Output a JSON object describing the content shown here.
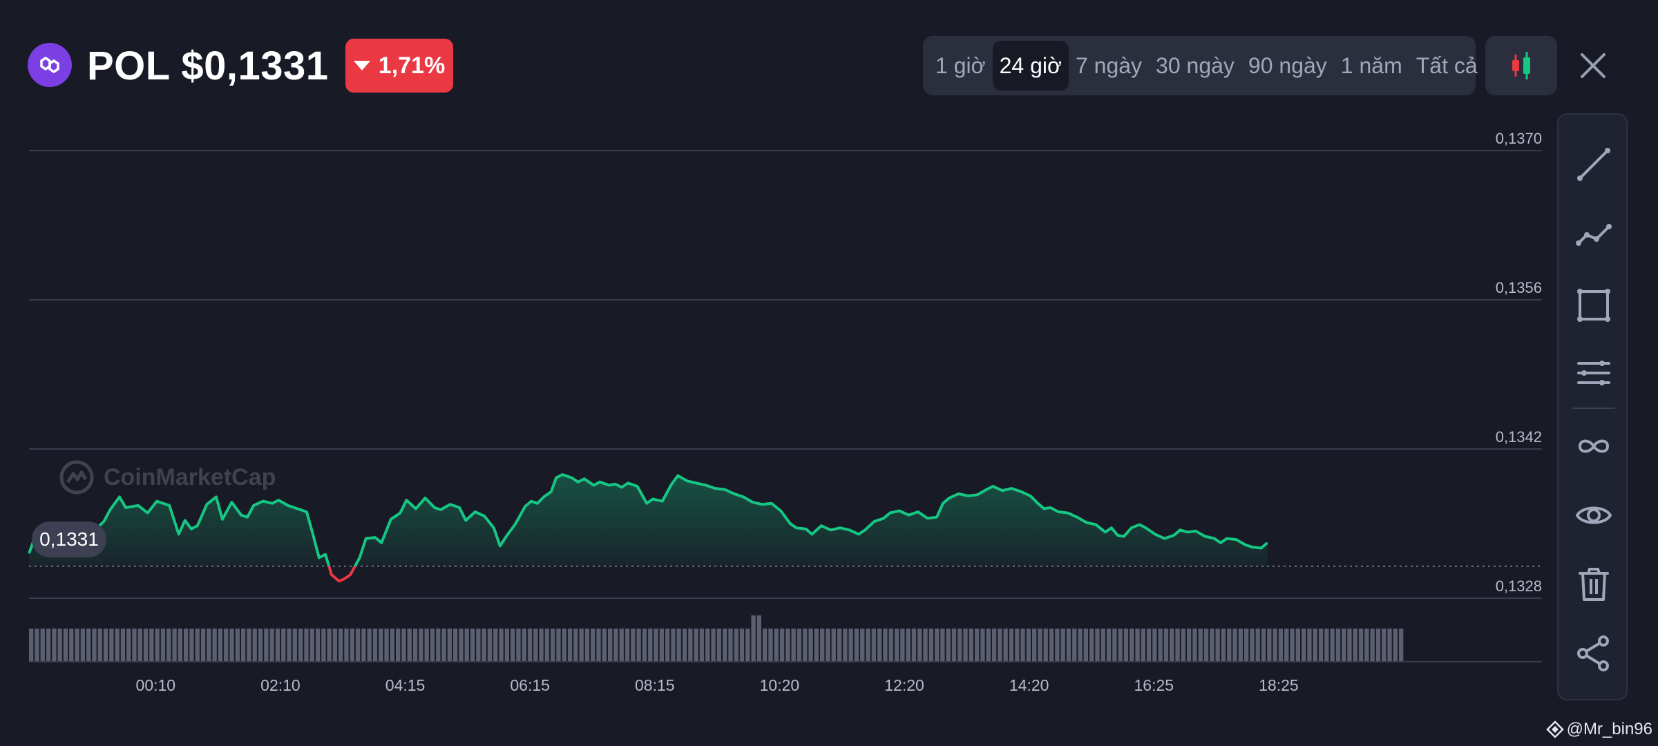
{
  "header": {
    "symbol": "POL",
    "price": "$0,1331",
    "change": "1,71%",
    "change_color": "#ea3943",
    "logo_icon": "polygon-logo-icon"
  },
  "range_tabs": [
    {
      "label": "1 giờ",
      "active": false
    },
    {
      "label": "24 giờ",
      "active": true
    },
    {
      "label": "7 ngày",
      "active": false
    },
    {
      "label": "30 ngày",
      "active": false
    },
    {
      "label": "90 ngày",
      "active": false
    },
    {
      "label": "1 năm",
      "active": false
    },
    {
      "label": "Tất cả",
      "active": false
    }
  ],
  "toolbar": {
    "icons": [
      "trend-line-icon",
      "polyline-icon",
      "rectangle-icon",
      "horizontal-lines-icon",
      "infinity-icon",
      "eye-icon",
      "trash-icon",
      "share-icon"
    ]
  },
  "watermark": "CoinMarketCap",
  "current_price_label": "0,1331",
  "signature": "@Mr_bin96",
  "colors": {
    "up": "#16c784",
    "down": "#ea3943",
    "grid": "#3a3d4e"
  },
  "chart_data": {
    "type": "area",
    "title": "",
    "xlabel": "",
    "ylabel": "",
    "y_axis_side": "right",
    "ylim": [
      0.1328,
      0.137
    ],
    "y_ticks": [
      {
        "value": 0.137,
        "label": "0,1370"
      },
      {
        "value": 0.1356,
        "label": "0,1356"
      },
      {
        "value": 0.1342,
        "label": "0,1342"
      },
      {
        "value": 0.1328,
        "label": "0,1328"
      }
    ],
    "xlim": [
      -0.45,
      23.8
    ],
    "x_ticks": [
      {
        "value": 1.58,
        "label": "00:10"
      },
      {
        "value": 3.58,
        "label": "02:10"
      },
      {
        "value": 5.58,
        "label": "04:15"
      },
      {
        "value": 7.58,
        "label": "06:15"
      },
      {
        "value": 9.58,
        "label": "08:15"
      },
      {
        "value": 11.58,
        "label": "10:20"
      },
      {
        "value": 13.58,
        "label": "12:20"
      },
      {
        "value": 15.58,
        "label": "14:20"
      },
      {
        "value": 17.58,
        "label": "16:25"
      },
      {
        "value": 19.58,
        "label": "18:25"
      }
    ],
    "baseline": 0.1331,
    "grid": true,
    "series": [
      {
        "points": [
          [
            -0.45,
            0.13322
          ],
          [
            -0.35,
            0.13338
          ],
          [
            -0.2,
            0.13331
          ],
          [
            -0.05,
            0.13342
          ],
          [
            0.05,
            0.13338
          ],
          [
            0.2,
            0.13348
          ],
          [
            0.35,
            0.13339
          ],
          [
            0.55,
            0.13341
          ],
          [
            0.75,
            0.13352
          ],
          [
            0.85,
            0.13363
          ],
          [
            1.0,
            0.13375
          ],
          [
            1.1,
            0.13365
          ],
          [
            1.3,
            0.13367
          ],
          [
            1.45,
            0.1336
          ],
          [
            1.6,
            0.13371
          ],
          [
            1.8,
            0.13367
          ],
          [
            1.95,
            0.1334
          ],
          [
            2.05,
            0.13353
          ],
          [
            2.15,
            0.13345
          ],
          [
            2.25,
            0.13348
          ],
          [
            2.4,
            0.13368
          ],
          [
            2.55,
            0.13375
          ],
          [
            2.65,
            0.13354
          ],
          [
            2.8,
            0.1337
          ],
          [
            2.95,
            0.13358
          ],
          [
            3.05,
            0.13356
          ],
          [
            3.15,
            0.13367
          ],
          [
            3.3,
            0.13371
          ],
          [
            3.45,
            0.13369
          ],
          [
            3.55,
            0.13372
          ],
          [
            3.7,
            0.13367
          ],
          [
            3.85,
            0.13364
          ],
          [
            4.0,
            0.13361
          ],
          [
            4.1,
            0.1334
          ],
          [
            4.2,
            0.13318
          ],
          [
            4.3,
            0.13321
          ],
          [
            4.4,
            0.13302
          ],
          [
            4.52,
            0.13296
          ],
          [
            4.6,
            0.13298
          ],
          [
            4.7,
            0.13302
          ],
          [
            4.85,
            0.13318
          ],
          [
            4.95,
            0.13336
          ],
          [
            5.1,
            0.13337
          ],
          [
            5.2,
            0.13332
          ],
          [
            5.35,
            0.13354
          ],
          [
            5.5,
            0.1336
          ],
          [
            5.6,
            0.13372
          ],
          [
            5.75,
            0.13364
          ],
          [
            5.9,
            0.13374
          ],
          [
            6.05,
            0.13365
          ],
          [
            6.15,
            0.13363
          ],
          [
            6.3,
            0.13368
          ],
          [
            6.45,
            0.13365
          ],
          [
            6.55,
            0.13353
          ],
          [
            6.7,
            0.13361
          ],
          [
            6.85,
            0.13357
          ],
          [
            7.0,
            0.13346
          ],
          [
            7.1,
            0.13329
          ],
          [
            7.2,
            0.13338
          ],
          [
            7.35,
            0.1335
          ],
          [
            7.5,
            0.13366
          ],
          [
            7.6,
            0.13371
          ],
          [
            7.7,
            0.13369
          ],
          [
            7.8,
            0.13375
          ],
          [
            7.92,
            0.1338
          ],
          [
            8.0,
            0.13393
          ],
          [
            8.1,
            0.13396
          ],
          [
            8.25,
            0.13393
          ],
          [
            8.35,
            0.13389
          ],
          [
            8.45,
            0.13392
          ],
          [
            8.6,
            0.13386
          ],
          [
            8.7,
            0.13389
          ],
          [
            8.85,
            0.13386
          ],
          [
            8.95,
            0.13387
          ],
          [
            9.05,
            0.13384
          ],
          [
            9.15,
            0.13388
          ],
          [
            9.3,
            0.13385
          ],
          [
            9.45,
            0.13369
          ],
          [
            9.55,
            0.13373
          ],
          [
            9.7,
            0.13371
          ],
          [
            9.85,
            0.13387
          ],
          [
            9.95,
            0.13395
          ],
          [
            10.1,
            0.1339
          ],
          [
            10.25,
            0.13388
          ],
          [
            10.4,
            0.13386
          ],
          [
            10.55,
            0.13383
          ],
          [
            10.7,
            0.13382
          ],
          [
            10.85,
            0.13378
          ],
          [
            11.0,
            0.13375
          ],
          [
            11.15,
            0.1337
          ],
          [
            11.3,
            0.13368
          ],
          [
            11.45,
            0.13369
          ],
          [
            11.6,
            0.13362
          ],
          [
            11.75,
            0.1335
          ],
          [
            11.85,
            0.13346
          ],
          [
            12.0,
            0.13345
          ],
          [
            12.1,
            0.1334
          ],
          [
            12.25,
            0.13348
          ],
          [
            12.4,
            0.13344
          ],
          [
            12.55,
            0.13346
          ],
          [
            12.7,
            0.13344
          ],
          [
            12.85,
            0.1334
          ],
          [
            12.95,
            0.13344
          ],
          [
            13.1,
            0.13352
          ],
          [
            13.25,
            0.13355
          ],
          [
            13.35,
            0.1336
          ],
          [
            13.5,
            0.13362
          ],
          [
            13.65,
            0.13358
          ],
          [
            13.8,
            0.13361
          ],
          [
            13.95,
            0.13355
          ],
          [
            14.1,
            0.13356
          ],
          [
            14.2,
            0.13369
          ],
          [
            14.3,
            0.13374
          ],
          [
            14.45,
            0.13378
          ],
          [
            14.6,
            0.13376
          ],
          [
            14.75,
            0.13377
          ],
          [
            14.9,
            0.13382
          ],
          [
            15.0,
            0.13385
          ],
          [
            15.15,
            0.13381
          ],
          [
            15.3,
            0.13383
          ],
          [
            15.45,
            0.1338
          ],
          [
            15.6,
            0.13376
          ],
          [
            15.72,
            0.13369
          ],
          [
            15.82,
            0.13364
          ],
          [
            15.92,
            0.13365
          ],
          [
            16.05,
            0.13361
          ],
          [
            16.2,
            0.1336
          ],
          [
            16.35,
            0.13356
          ],
          [
            16.5,
            0.13351
          ],
          [
            16.65,
            0.13349
          ],
          [
            16.8,
            0.13342
          ],
          [
            16.9,
            0.13346
          ],
          [
            17.0,
            0.13339
          ],
          [
            17.1,
            0.13338
          ],
          [
            17.22,
            0.13346
          ],
          [
            17.35,
            0.13349
          ],
          [
            17.45,
            0.13346
          ],
          [
            17.6,
            0.1334
          ],
          [
            17.75,
            0.13336
          ],
          [
            17.9,
            0.13339
          ],
          [
            18.0,
            0.13344
          ],
          [
            18.12,
            0.13342
          ],
          [
            18.25,
            0.13343
          ],
          [
            18.4,
            0.13338
          ],
          [
            18.55,
            0.13336
          ],
          [
            18.65,
            0.13332
          ],
          [
            18.75,
            0.13336
          ],
          [
            18.9,
            0.13335
          ],
          [
            19.05,
            0.1333
          ],
          [
            19.15,
            0.13328
          ],
          [
            19.3,
            0.13327
          ],
          [
            19.4,
            0.13332
          ]
        ]
      }
    ],
    "volume": {
      "x_start": -0.45,
      "x_end": 21.6,
      "bar_count": 240,
      "values": [
        1.0
      ],
      "spike_at": 11.2,
      "spike_value": 1.4
    }
  }
}
